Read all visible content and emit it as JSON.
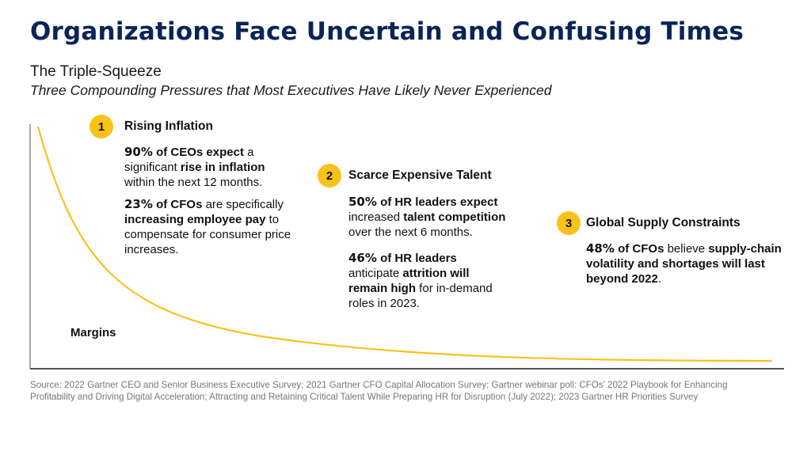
{
  "title": "Organizations Face Uncertain and Confusing Times",
  "subtitle": "The Triple-Squeeze",
  "subtitle_italic": "Three Compounding Pressures that Most Executives Have Likely Never Experienced",
  "accent_color": "#f9c21b",
  "title_color": "#0a2456",
  "pressures": [
    {
      "number": "1",
      "title": "Rising Inflation",
      "para1": {
        "stat": "90%",
        "p1": "of CEOs expect",
        "p2": " a significant ",
        "p3": "rise in inflation",
        "p4": " within the next 12 months."
      },
      "para2": {
        "stat": "23%",
        "p1": "of CFOs",
        "p2": " are specifically ",
        "p3": "increasing employee pay",
        "p4": " to compensate for consumer price increases."
      }
    },
    {
      "number": "2",
      "title": "Scarce Expensive Talent",
      "para1": {
        "stat": "50%",
        "p1": "of HR leaders expect",
        "p2": " increased ",
        "p3": "talent competition",
        "p4": " over the next 6 months."
      },
      "para2": {
        "stat": "46%",
        "p1": "of HR leaders",
        "p2": " anticipate ",
        "p3": "attrition will remain high",
        "p4": " for in-demand roles in 2023."
      }
    },
    {
      "number": "3",
      "title": "Global Supply Constraints",
      "para1": {
        "stat": "48%",
        "p1": "of CFOs",
        "p2": " believe ",
        "p3": "supply-chain volatility and shortages will last beyond 2022",
        "p4": "."
      }
    }
  ],
  "curve_label": "Margins",
  "source": "Source: 2022 Gartner CEO and Senior Business Executive Survey; 2021 Gartner CFO Capital Allocation Survey; Gartner webinar poll: CFOs’ 2022 Playbook for Enhancing Profitability and Driving Digital Acceleration; Attracting and Retaining Critical Talent While Preparing HR for Disruption (July 2022); 2023 Gartner HR Priorities Survey"
}
